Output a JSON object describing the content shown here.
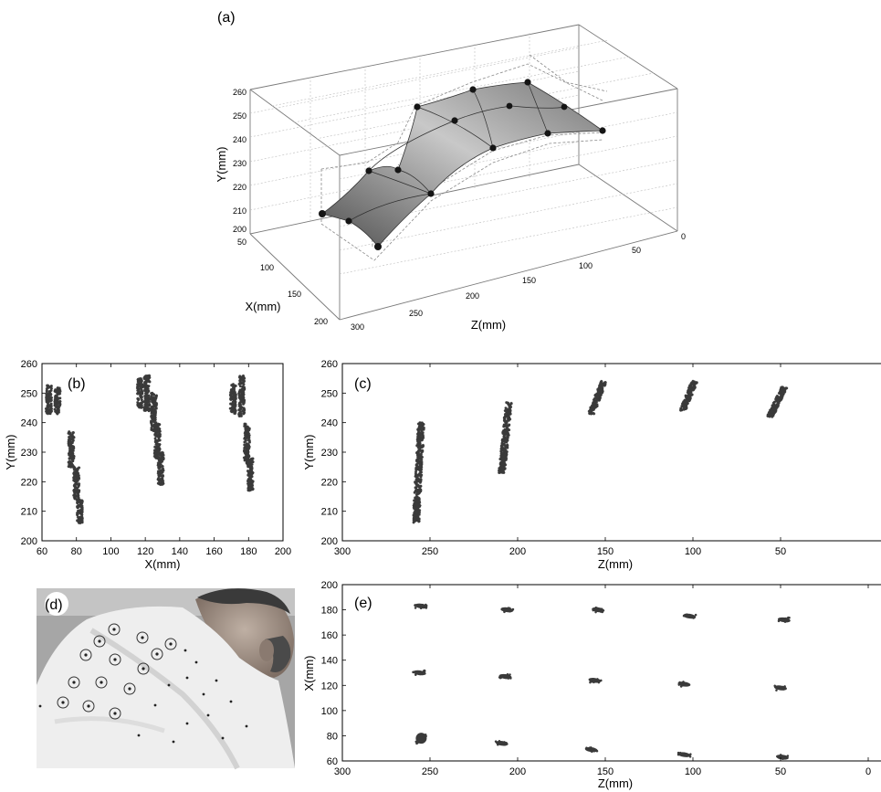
{
  "chart_data": [
    {
      "id": "a",
      "type": "surface3d",
      "panel_label": "(a)",
      "xlabel": "X(mm)",
      "ylabel": "Y(mm)",
      "zlabel": "Z(mm)",
      "x_ticks": [
        "50",
        "100",
        "150",
        "200"
      ],
      "y_ticks": [
        "200",
        "210",
        "220",
        "230",
        "240",
        "250",
        "260"
      ],
      "z_ticks": [
        "300",
        "250",
        "200",
        "150",
        "100",
        "50",
        "0"
      ],
      "xlim": [
        50,
        200
      ],
      "ylim": [
        200,
        260
      ],
      "zlim": [
        0,
        300
      ],
      "grid": true,
      "markers": [
        {
          "x": 80,
          "z": 255,
          "y": 251
        },
        {
          "x": 80,
          "z": 208,
          "y": 247
        },
        {
          "x": 80,
          "z": 157,
          "y": 250
        },
        {
          "x": 80,
          "z": 105,
          "y": 249
        },
        {
          "x": 80,
          "z": 52,
          "y": 247
        },
        {
          "x": 125,
          "z": 255,
          "y": 230
        },
        {
          "x": 125,
          "z": 208,
          "y": 238
        },
        {
          "x": 125,
          "z": 157,
          "y": 250
        },
        {
          "x": 125,
          "z": 105,
          "y": 249
        },
        {
          "x": 125,
          "z": 52,
          "y": 247
        },
        {
          "x": 180,
          "z": 255,
          "y": 210
        },
        {
          "x": 180,
          "z": 208,
          "y": 225
        },
        {
          "x": 180,
          "z": 157,
          "y": 243
        },
        {
          "x": 180,
          "z": 105,
          "y": 247
        },
        {
          "x": 180,
          "z": 52,
          "y": 245
        }
      ]
    },
    {
      "id": "b",
      "type": "scatter",
      "panel_label": "(b)",
      "xlabel": "X(mm)",
      "ylabel": "Y(mm)",
      "xlim": [
        60,
        200
      ],
      "ylim": [
        200,
        260
      ],
      "x_ticks": [
        "60",
        "80",
        "100",
        "120",
        "140",
        "160",
        "180",
        "200"
      ],
      "y_ticks": [
        "200",
        "210",
        "220",
        "230",
        "240",
        "250",
        "260"
      ],
      "clusters": [
        {
          "x": 64,
          "y": [
            243,
            253
          ]
        },
        {
          "x": 69,
          "y": [
            243,
            252
          ]
        },
        {
          "x": 77,
          "y": [
            225,
            237
          ]
        },
        {
          "x": 80,
          "y": [
            214,
            225
          ]
        },
        {
          "x": 82,
          "y": [
            206,
            214
          ]
        },
        {
          "x": 117,
          "y": [
            245,
            255
          ]
        },
        {
          "x": 121,
          "y": [
            244,
            256
          ]
        },
        {
          "x": 125,
          "y": [
            237,
            250
          ]
        },
        {
          "x": 127,
          "y": [
            228,
            240
          ]
        },
        {
          "x": 129,
          "y": [
            219,
            230
          ]
        },
        {
          "x": 171,
          "y": [
            243,
            253
          ]
        },
        {
          "x": 176,
          "y": [
            242,
            256
          ]
        },
        {
          "x": 179,
          "y": [
            226,
            240
          ]
        },
        {
          "x": 181,
          "y": [
            217,
            228
          ]
        }
      ]
    },
    {
      "id": "c",
      "type": "scatter",
      "panel_label": "(c)",
      "xlabel": "Z(mm)",
      "ylabel": "Y(mm)",
      "xlim": [
        300,
        0
      ],
      "ylim": [
        200,
        260
      ],
      "x_ticks": [
        "300",
        "250",
        "200",
        "150",
        "100",
        "50"
      ],
      "y_ticks": [
        "200",
        "210",
        "220",
        "230",
        "240",
        "250",
        "260"
      ],
      "clusters": [
        {
          "z": [
            258,
            255
          ],
          "y": [
            206,
            240
          ]
        },
        {
          "z": [
            209,
            205
          ],
          "y": [
            223,
            247
          ]
        },
        {
          "z": [
            158,
            151
          ],
          "y": [
            243,
            254
          ]
        },
        {
          "z": [
            106,
            99
          ],
          "y": [
            244,
            254
          ]
        },
        {
          "z": [
            56,
            48
          ],
          "y": [
            242,
            252
          ]
        }
      ]
    },
    {
      "id": "e",
      "type": "scatter",
      "panel_label": "(e)",
      "xlabel": "Z(mm)",
      "ylabel": "X(mm)",
      "xlim": [
        300,
        0
      ],
      "ylim": [
        60,
        200
      ],
      "x_ticks": [
        "300",
        "250",
        "200",
        "150",
        "100",
        "50",
        "0"
      ],
      "y_ticks": [
        "60",
        "80",
        "100",
        "120",
        "140",
        "160",
        "180",
        "200"
      ],
      "clusters": [
        {
          "z": 255,
          "x": 183
        },
        {
          "z": 206,
          "x": 180
        },
        {
          "z": 154,
          "x": 180
        },
        {
          "z": 102,
          "x": 175
        },
        {
          "z": 48,
          "x": 172
        },
        {
          "z": 256,
          "x": 130
        },
        {
          "z": 207,
          "x": 127
        },
        {
          "z": 156,
          "x": 124
        },
        {
          "z": 105,
          "x": 121
        },
        {
          "z": 50,
          "x": 118
        },
        {
          "z": 255,
          "x": 78
        },
        {
          "z": 209,
          "x": 74
        },
        {
          "z": 158,
          "x": 69
        },
        {
          "z": 105,
          "x": 65
        },
        {
          "z": 49,
          "x": 63
        }
      ]
    }
  ],
  "photo": {
    "panel_label": "(d)",
    "description_icon": "person-back-marker-photo",
    "colors": {
      "bg": "#a9a9a9",
      "shirt": "#eeeeee",
      "skin": "#9a8a80",
      "hair": "#3a3a3a",
      "marker": "#222222"
    }
  },
  "colors": {
    "surface_light": "#d8d8d8",
    "surface_dark": "#4a4a4a",
    "points": "#3a3a3a",
    "marker": "#1a1a1a",
    "grid": "#bbbbbb",
    "axis": "#000000"
  }
}
